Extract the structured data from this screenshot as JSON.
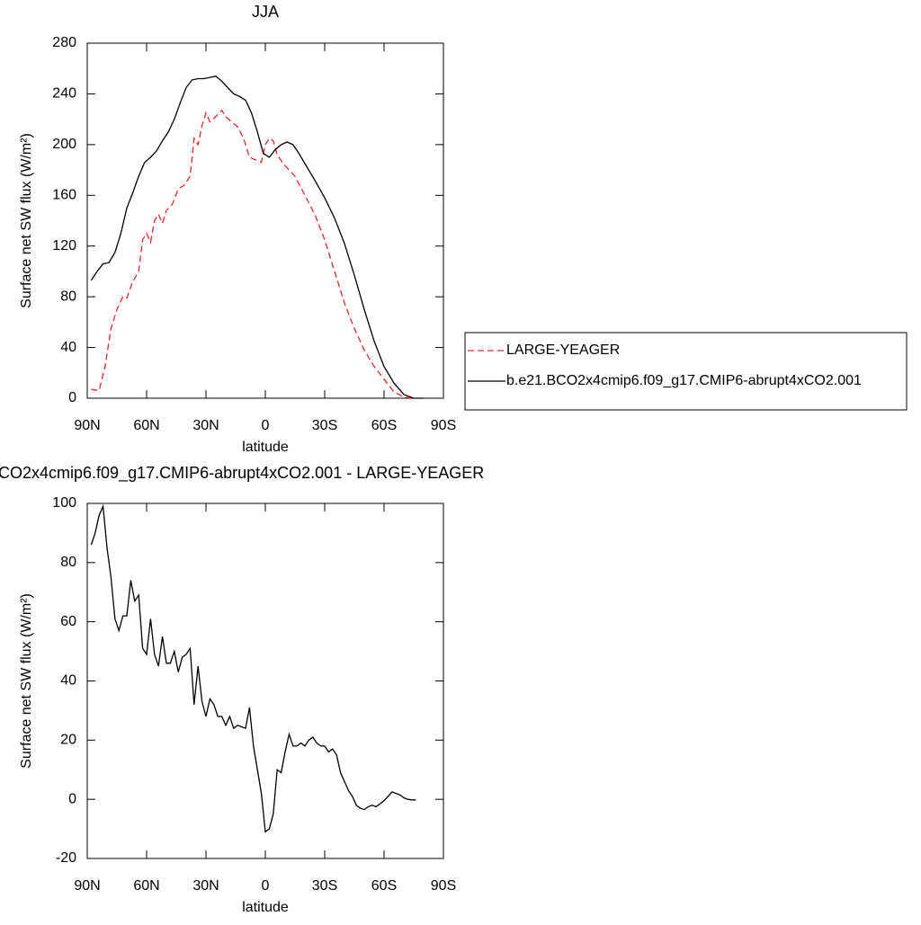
{
  "chart_data": [
    {
      "type": "line",
      "title": "JJA",
      "xlabel": "latitude",
      "ylabel": "Surface net SW flux (W/m²)",
      "xlim": [
        90,
        -90
      ],
      "xticks": [
        {
          "value": 90,
          "label": "90N"
        },
        {
          "value": 60,
          "label": "60N"
        },
        {
          "value": 30,
          "label": "30N"
        },
        0,
        {
          "value": -30,
          "label": "30S"
        },
        {
          "value": -60,
          "label": "60S"
        },
        {
          "value": -90,
          "label": "90S"
        }
      ],
      "ylim": [
        0,
        280
      ],
      "yticks": [
        0,
        40,
        80,
        120,
        160,
        200,
        240,
        280
      ],
      "legend": "right",
      "series": [
        {
          "name": "LARGE-YEAGER",
          "color": "#e8262b",
          "dash": true,
          "x": [
            88,
            84,
            81,
            78,
            75,
            72,
            70,
            67,
            64,
            62,
            60,
            58,
            56,
            54,
            52,
            50,
            47,
            44,
            41,
            38,
            36,
            34,
            32,
            30,
            28,
            25,
            22,
            20,
            17,
            14,
            11,
            8,
            5,
            2,
            0,
            -2,
            -4,
            -6,
            -9,
            -12,
            -15,
            -20,
            -25,
            -30,
            -35,
            -40,
            -45,
            -50,
            -55,
            -60,
            -65,
            -70,
            -75
          ],
          "values": [
            7,
            6,
            25,
            55,
            70,
            80,
            79,
            92,
            100,
            125,
            130,
            123,
            140,
            145,
            138,
            148,
            153,
            165,
            168,
            175,
            205,
            200,
            215,
            225,
            218,
            222,
            227,
            222,
            218,
            214,
            205,
            190,
            188,
            186,
            200,
            205,
            203,
            192,
            185,
            180,
            175,
            160,
            145,
            125,
            100,
            75,
            55,
            38,
            25,
            15,
            5,
            1,
            0
          ]
        },
        {
          "name": "b.e21.BCO2x4cmip6.f09_g17.CMIP6-abrupt4xCO2.001",
          "color": "#000000",
          "dash": false,
          "x": [
            88,
            85,
            82,
            79,
            76,
            73,
            70,
            67,
            64,
            61,
            58,
            55,
            52,
            49,
            46,
            43,
            40,
            37,
            34,
            31,
            28,
            25,
            22,
            19,
            16,
            13,
            10,
            7,
            4,
            1,
            -2,
            -5,
            -8,
            -11,
            -14,
            -17,
            -20,
            -25,
            -30,
            -35,
            -40,
            -45,
            -50,
            -55,
            -60,
            -65,
            -70,
            -75,
            -80
          ],
          "values": [
            93,
            100,
            106,
            107,
            115,
            130,
            150,
            162,
            175,
            186,
            190,
            195,
            203,
            210,
            220,
            233,
            245,
            251,
            252,
            252,
            253,
            254,
            250,
            245,
            240,
            238,
            235,
            225,
            210,
            193,
            190,
            196,
            200,
            202,
            200,
            193,
            185,
            172,
            158,
            142,
            122,
            97,
            70,
            45,
            25,
            12,
            3,
            0,
            0
          ]
        }
      ]
    },
    {
      "type": "line",
      "title": "CO2x4cmip6.f09_g17.CMIP6-abrupt4xCO2.001 - LARGE-YEAGER",
      "xlabel": "latitude",
      "ylabel": "Surface net SW flux (W/m²)",
      "xlim": [
        90,
        -90
      ],
      "xticks": [
        {
          "value": 90,
          "label": "90N"
        },
        {
          "value": 60,
          "label": "60N"
        },
        {
          "value": 30,
          "label": "30N"
        },
        0,
        {
          "value": -30,
          "label": "30S"
        },
        {
          "value": -60,
          "label": "60S"
        },
        {
          "value": -90,
          "label": "90S"
        }
      ],
      "ylim": [
        -20,
        100
      ],
      "yticks": [
        -20,
        0,
        20,
        40,
        60,
        80,
        100
      ],
      "x": [
        88,
        86,
        84,
        82,
        80,
        78,
        76,
        74,
        72,
        70,
        68,
        66,
        64,
        62,
        60,
        58,
        56,
        54,
        52,
        50,
        48,
        46,
        44,
        42,
        40,
        38,
        36,
        34,
        32,
        30,
        28,
        26,
        24,
        22,
        20,
        18,
        16,
        14,
        10,
        8,
        6,
        2,
        0,
        -2,
        -4,
        -6,
        -8,
        -10,
        -12,
        -14,
        -16,
        -18,
        -20,
        -22,
        -24,
        -26,
        -28,
        -30,
        -32,
        -34,
        -36,
        -38,
        -40,
        -42,
        -44,
        -46,
        -48,
        -50,
        -52,
        -54,
        -56,
        -58,
        -60,
        -62,
        -64,
        -66,
        -68,
        -70,
        -72,
        -74,
        -76
      ],
      "series": [
        {
          "color": "#000000",
          "dash": false,
          "values": [
            86,
            90,
            96,
            99,
            85,
            75,
            61,
            57,
            62,
            62,
            74,
            67,
            69,
            51,
            49,
            61,
            49,
            45,
            55,
            46,
            46,
            50,
            43,
            48,
            49,
            51,
            32,
            45,
            33,
            28,
            34,
            32,
            28,
            28,
            25,
            28,
            24,
            25,
            24,
            31,
            18,
            2,
            -11,
            -10,
            -5,
            10,
            9,
            16,
            22,
            18,
            18,
            19,
            18,
            20,
            21,
            19,
            18,
            18,
            16,
            17,
            15,
            9,
            6,
            3,
            1,
            -2,
            -3,
            -3.5,
            -2.5,
            -2,
            -2.5,
            -1.5,
            -0.5,
            1,
            2.5,
            2,
            1.5,
            0.5,
            0,
            -0.2,
            -0.2
          ]
        }
      ]
    }
  ]
}
